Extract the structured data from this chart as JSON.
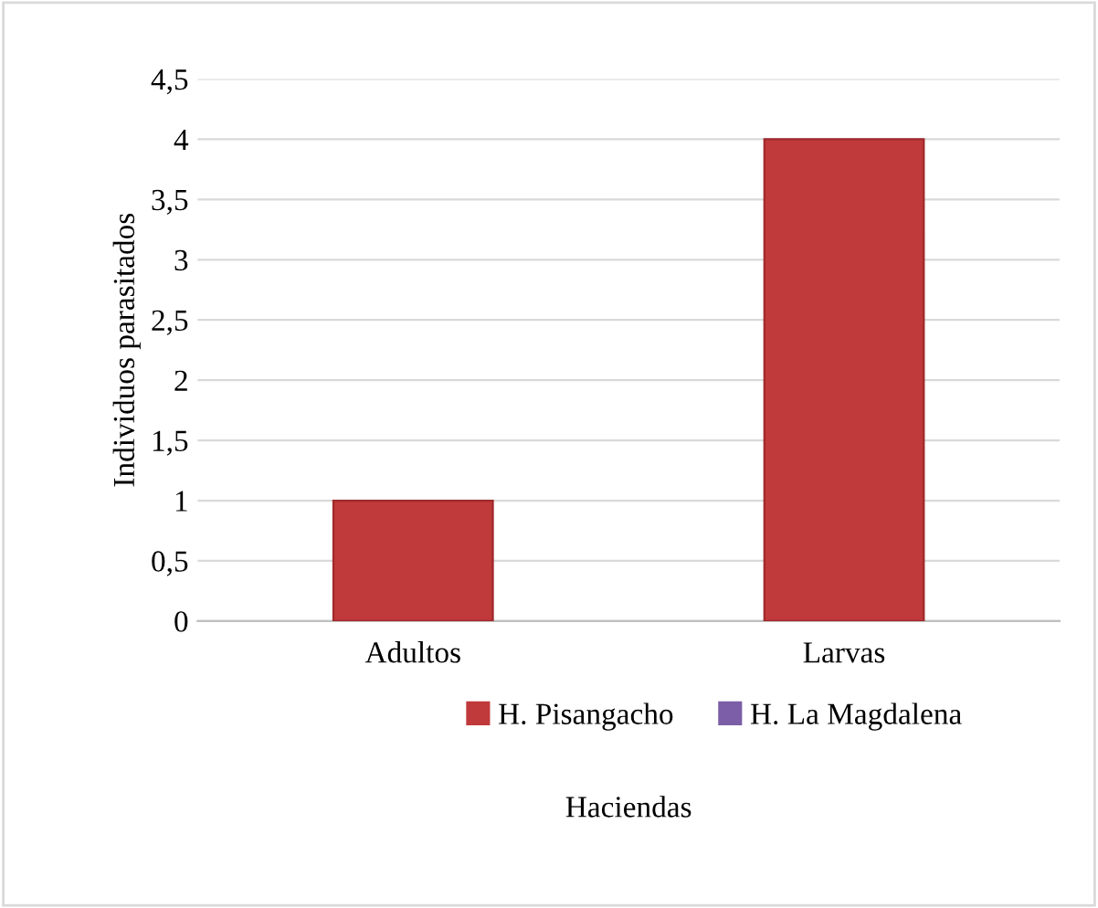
{
  "chart_data": {
    "type": "bar",
    "xlabel": "Haciendas",
    "ylabel": "Individuos parasitados",
    "categories": [
      "Adultos",
      "Larvas"
    ],
    "series": [
      {
        "name": "H. Pisangacho",
        "color": "#c0393b",
        "values": [
          1,
          4
        ]
      },
      {
        "name": "H. La Magdalena",
        "color": "#7b5ea7",
        "values": [
          null,
          null
        ]
      }
    ],
    "ylim": [
      0,
      4.5
    ],
    "yticks": [
      0,
      {
        "value": 0.5,
        "label": "0,5"
      },
      1,
      {
        "value": 1.5,
        "label": "1,5"
      },
      2,
      {
        "value": 2.5,
        "label": "2,5"
      },
      3,
      {
        "value": 3.5,
        "label": "3,5"
      },
      4,
      {
        "value": 4.5,
        "label": "4,5"
      }
    ],
    "grid": "y",
    "legend": "bottom"
  }
}
